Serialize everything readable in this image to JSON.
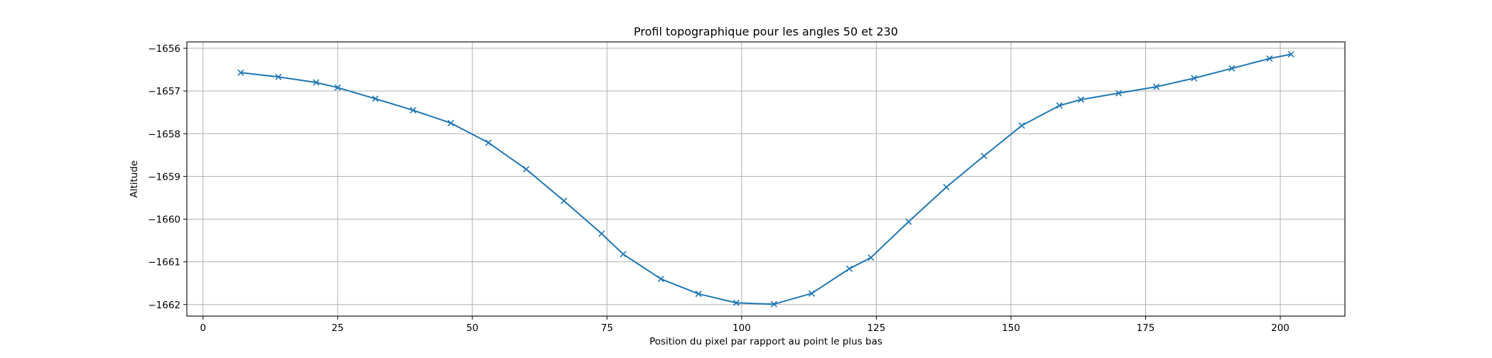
{
  "chart_data": {
    "type": "line",
    "title": "Profil topographique pour les angles 50 et 230",
    "xlabel": "Position du pixel par rapport au point le plus bas",
    "ylabel": "Altitude",
    "xlim": [
      -3,
      212
    ],
    "ylim": [
      -1662.27,
      -1655.85
    ],
    "xticks": [
      0,
      25,
      50,
      75,
      100,
      125,
      150,
      175,
      200
    ],
    "yticks": [
      -1662,
      -1661,
      -1660,
      -1659,
      -1658,
      -1657,
      -1656
    ],
    "grid": true,
    "series": [
      {
        "color": "#1f77b4",
        "marker": "x",
        "x": [
          7,
          14,
          21,
          25,
          32,
          39,
          46,
          53,
          60,
          67,
          74,
          78,
          85,
          92,
          99,
          106,
          113,
          120,
          124,
          131,
          138,
          145,
          152,
          159,
          163,
          170,
          177,
          184,
          191,
          198,
          202
        ],
        "y": [
          -1656.57,
          -1656.67,
          -1656.8,
          -1656.92,
          -1657.18,
          -1657.45,
          -1657.75,
          -1658.21,
          -1658.83,
          -1659.57,
          -1660.34,
          -1660.82,
          -1661.4,
          -1661.75,
          -1661.96,
          -1661.99,
          -1661.74,
          -1661.16,
          -1660.9,
          -1660.06,
          -1659.25,
          -1658.52,
          -1657.81,
          -1657.34,
          -1657.2,
          -1657.05,
          -1656.9,
          -1656.7,
          -1656.47,
          -1656.24,
          -1656.14
        ]
      }
    ]
  }
}
